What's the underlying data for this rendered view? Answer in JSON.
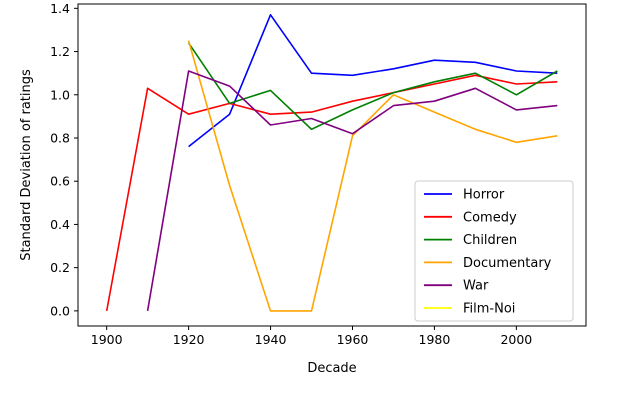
{
  "chart_data": {
    "type": "line",
    "xlabel": "Decade",
    "ylabel": "Standard Deviation of ratings",
    "xlim": [
      1893,
      2017
    ],
    "ylim": [
      -0.07,
      1.42
    ],
    "x_ticks": [
      1900,
      1920,
      1940,
      1960,
      1980,
      2000
    ],
    "y_ticks": [
      0.0,
      0.2,
      0.4,
      0.6,
      0.8,
      1.0,
      1.2,
      1.4
    ],
    "y_tick_labels": [
      "0.0",
      "0.2",
      "0.4",
      "0.6",
      "0.8",
      "1.0",
      "1.2",
      "1.4"
    ],
    "x_tick_labels": [
      "1900",
      "1920",
      "1940",
      "1960",
      "1980",
      "2000"
    ],
    "grid": false,
    "legend_position": "lower-right",
    "series": [
      {
        "name": "Horror",
        "color": "#0000ff",
        "x": [
          1920,
          1930,
          1940,
          1950,
          1960,
          1970,
          1980,
          1990,
          2000,
          2010
        ],
        "y": [
          0.76,
          0.91,
          1.37,
          1.1,
          1.09,
          1.12,
          1.16,
          1.15,
          1.11,
          1.1
        ]
      },
      {
        "name": "Comedy",
        "color": "#ff0000",
        "x": [
          1900,
          1910,
          1920,
          1930,
          1940,
          1950,
          1960,
          1970,
          1980,
          1990,
          2000,
          2010
        ],
        "y": [
          0.0,
          1.03,
          0.91,
          0.96,
          0.91,
          0.92,
          0.97,
          1.01,
          1.05,
          1.09,
          1.05,
          1.06
        ]
      },
      {
        "name": "Children",
        "color": "#008000",
        "x": [
          1920,
          1930,
          1940,
          1950,
          1960,
          1970,
          1980,
          1990,
          2000,
          2010
        ],
        "y": [
          1.24,
          0.96,
          1.02,
          0.84,
          0.93,
          1.01,
          1.06,
          1.1,
          1.0,
          1.11
        ]
      },
      {
        "name": "Documentary",
        "color": "#ffa500",
        "x": [
          1920,
          1930,
          1940,
          1950,
          1960,
          1970,
          1980,
          1990,
          2000,
          2010
        ],
        "y": [
          1.25,
          0.58,
          0.0,
          0.0,
          0.81,
          1.0,
          0.92,
          0.84,
          0.78,
          0.81
        ]
      },
      {
        "name": "War",
        "color": "#800080",
        "x": [
          1910,
          1920,
          1930,
          1940,
          1950,
          1960,
          1970,
          1980,
          1990,
          2000,
          2010
        ],
        "y": [
          0.0,
          1.11,
          1.04,
          0.86,
          0.89,
          0.82,
          0.95,
          0.97,
          1.03,
          0.93,
          0.95
        ]
      },
      {
        "name": "Film-Noi",
        "color": "#ffff00",
        "x": [],
        "y": []
      }
    ]
  }
}
